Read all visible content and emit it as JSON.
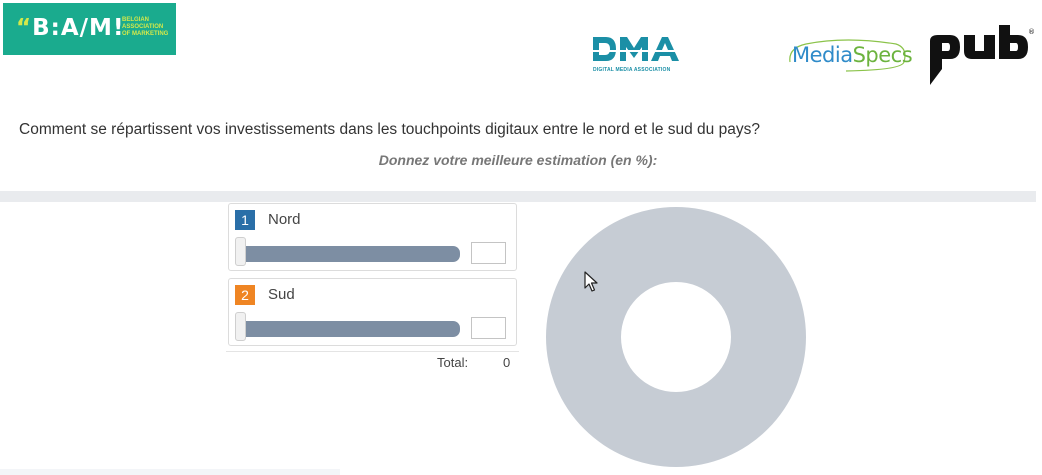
{
  "logos": {
    "bam": {
      "mark_open": "“",
      "mark": "B:A/M!",
      "subtitle": [
        "BELGIAN",
        "ASSOCIATION",
        "OF MARKETING"
      ],
      "background": "#1aab8e",
      "accent": "#d4e84a"
    },
    "dma": {
      "text": "DMA",
      "subtitle": "DIGITAL MEDIA ASSOCIATION",
      "color": "#1b8fa6"
    },
    "mediaspecs": {
      "part1": "Media",
      "part2": "Specs",
      "color1": "#2f8bc9",
      "color2": "#6cb33e"
    },
    "pub": {
      "text": "pub",
      "registered": "®"
    }
  },
  "question": {
    "text": "Comment se répartissent vos investissements dans les touchpoints digitaux entre le nord et le sud du pays?",
    "instruction": "Donnez votre meilleure estimation (en %):"
  },
  "sliders": [
    {
      "number": "1",
      "label": "Nord",
      "value": "",
      "badge_color": "#2a6fa8",
      "level": 0
    },
    {
      "number": "2",
      "label": "Sud",
      "value": "",
      "badge_color": "#ef8523",
      "level": 0
    }
  ],
  "total": {
    "label": "Total:",
    "value": "0"
  },
  "chart_data": {
    "type": "pie",
    "style": "donut",
    "categories": [
      "Nord",
      "Sud"
    ],
    "values": [
      0,
      0
    ],
    "empty_color": "#c6ccd4"
  },
  "colors": {
    "track": "#7d8ea3",
    "divider": "#e9ebee",
    "donut_empty": "#c6ccd4"
  }
}
